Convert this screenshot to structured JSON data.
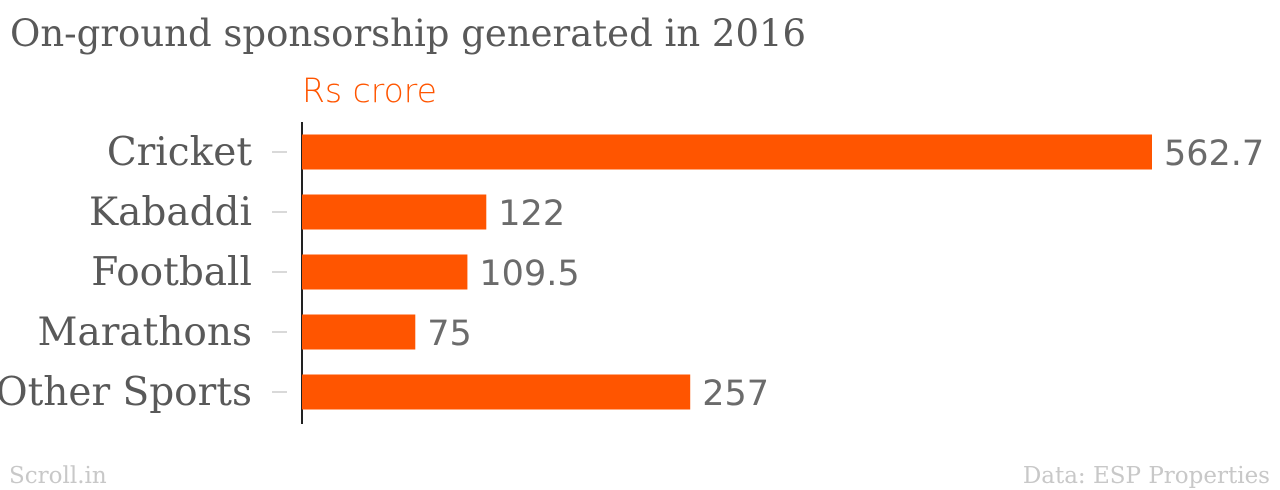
{
  "footer": {
    "brand": "Scroll.in",
    "source": "Data: ESP Properties"
  },
  "colors": {
    "bar": "#ff5500",
    "unit_label": "#ff5500"
  },
  "chart_data": {
    "type": "bar",
    "orientation": "horizontal",
    "title": "On-ground sponsorship generated in 2016",
    "unit_label": "Rs crore",
    "categories": [
      "Cricket",
      "Kabaddi",
      "Football",
      "Marathons",
      "Other Sports"
    ],
    "values": [
      562.7,
      122,
      109.5,
      75,
      257
    ],
    "value_labels": [
      "562.7",
      "122",
      "109.5",
      "75",
      "257"
    ],
    "xlim": [
      0,
      562.7
    ],
    "grid": false,
    "legend": "none"
  }
}
